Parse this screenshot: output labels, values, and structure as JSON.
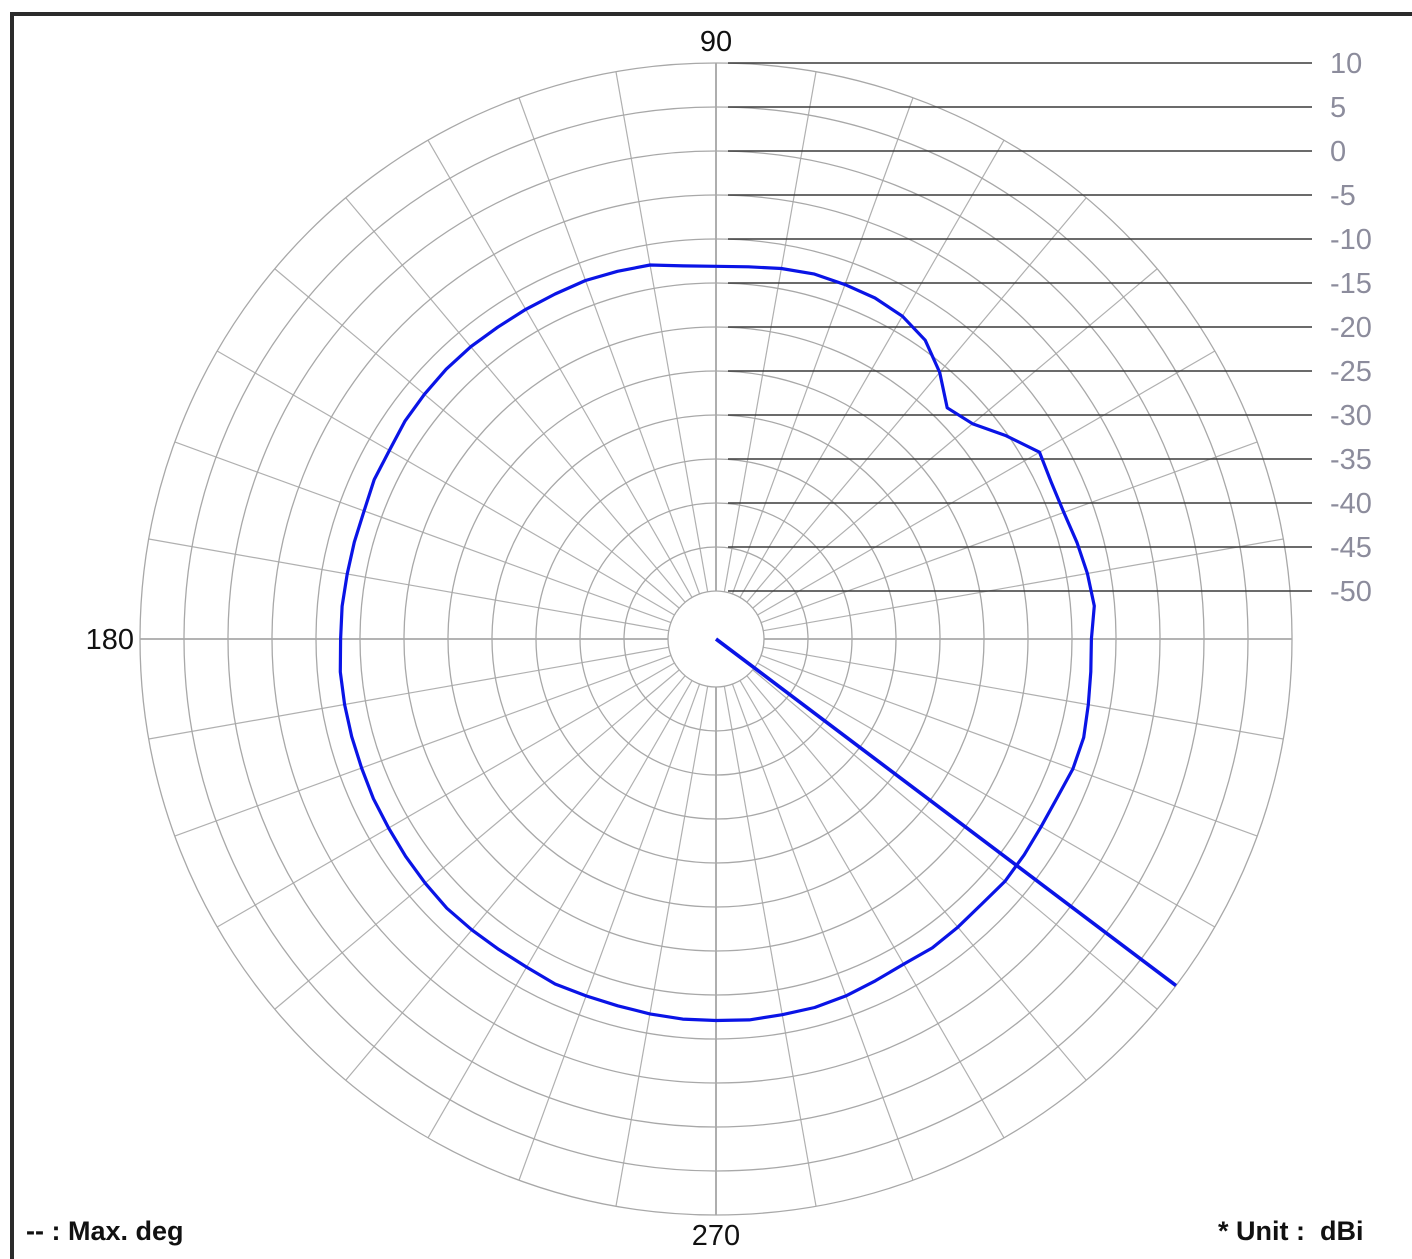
{
  "chart_data": {
    "type": "polar",
    "angle_labels": [
      "90",
      "180",
      "270"
    ],
    "radial_ticks": [
      "10",
      "5",
      "0",
      "-5",
      "-10",
      "-15",
      "-20",
      "-25",
      "-30",
      "-35",
      "-40",
      "-45",
      "-50"
    ],
    "r_range": [
      -50,
      10
    ],
    "r_unit": "dBi",
    "grid": true,
    "angular_grid_step_deg": 10,
    "series": [
      {
        "color": "#0a14e6",
        "points": [
          {
            "angle": 0,
            "value": -12.8
          },
          {
            "angle": 5,
            "value": -12.3
          },
          {
            "angle": 10,
            "value": -12.6
          },
          {
            "angle": 15,
            "value": -13.0
          },
          {
            "angle": 20,
            "value": -13.4
          },
          {
            "angle": 25,
            "value": -13.4
          },
          {
            "angle": 30,
            "value": -13.0
          },
          {
            "angle": 35,
            "value": -15.2
          },
          {
            "angle": 40,
            "value": -17.4
          },
          {
            "angle": 45,
            "value": -18.3
          },
          {
            "angle": 50,
            "value": -15.9
          },
          {
            "angle": 55,
            "value": -14.0
          },
          {
            "angle": 60,
            "value": -13.1
          },
          {
            "angle": 65,
            "value": -12.7
          },
          {
            "angle": 70,
            "value": -12.6
          },
          {
            "angle": 75,
            "value": -12.5
          },
          {
            "angle": 80,
            "value": -12.7
          },
          {
            "angle": 85,
            "value": -13.0
          },
          {
            "angle": 90,
            "value": -13.1
          },
          {
            "angle": 95,
            "value": -12.9
          },
          {
            "angle": 100,
            "value": -12.3
          },
          {
            "angle": 105,
            "value": -12.2
          },
          {
            "angle": 110,
            "value": -12.1
          },
          {
            "angle": 115,
            "value": -12.2
          },
          {
            "angle": 120,
            "value": -12.2
          },
          {
            "angle": 125,
            "value": -12.2
          },
          {
            "angle": 130,
            "value": -12.1
          },
          {
            "angle": 135,
            "value": -12.1
          },
          {
            "angle": 140,
            "value": -12.2
          },
          {
            "angle": 145,
            "value": -12.3
          },
          {
            "angle": 150,
            "value": -12.6
          },
          {
            "angle": 155,
            "value": -12.6
          },
          {
            "angle": 160,
            "value": -12.9
          },
          {
            "angle": 165,
            "value": -12.9
          },
          {
            "angle": 170,
            "value": -12.9
          },
          {
            "angle": 175,
            "value": -12.8
          },
          {
            "angle": 180,
            "value": -12.8
          },
          {
            "angle": 185,
            "value": -12.6
          },
          {
            "angle": 190,
            "value": -12.6
          },
          {
            "angle": 195,
            "value": -12.6
          },
          {
            "angle": 200,
            "value": -12.6
          },
          {
            "angle": 205,
            "value": -12.5
          },
          {
            "angle": 210,
            "value": -12.5
          },
          {
            "angle": 215,
            "value": -12.4
          },
          {
            "angle": 220,
            "value": -12.3
          },
          {
            "angle": 225,
            "value": -12.2
          },
          {
            "angle": 230,
            "value": -12.3
          },
          {
            "angle": 235,
            "value": -12.4
          },
          {
            "angle": 240,
            "value": -12.4
          },
          {
            "angle": 245,
            "value": -12.2
          },
          {
            "angle": 250,
            "value": -12.3
          },
          {
            "angle": 255,
            "value": -12.3
          },
          {
            "angle": 260,
            "value": -12.2
          },
          {
            "angle": 265,
            "value": -12.1
          },
          {
            "angle": 270,
            "value": -12.1
          },
          {
            "angle": 275,
            "value": -12.0
          },
          {
            "angle": 280,
            "value": -12.1
          },
          {
            "angle": 285,
            "value": -12.1
          },
          {
            "angle": 290,
            "value": -12.3
          },
          {
            "angle": 295,
            "value": -12.6
          },
          {
            "angle": 300,
            "value": -12.8
          },
          {
            "angle": 305,
            "value": -12.6
          },
          {
            "angle": 310,
            "value": -12.7
          },
          {
            "angle": 315,
            "value": -12.8
          },
          {
            "angle": 320,
            "value": -12.6
          },
          {
            "angle": 325,
            "value": -12.7
          },
          {
            "angle": 330,
            "value": -12.8
          },
          {
            "angle": 335,
            "value": -12.7
          },
          {
            "angle": 340,
            "value": -12.3
          },
          {
            "angle": 345,
            "value": -12.2
          },
          {
            "angle": 350,
            "value": -12.5
          },
          {
            "angle": 355,
            "value": -12.7
          }
        ]
      }
    ],
    "max_direction": {
      "angle": 323,
      "value": 10
    }
  },
  "footer": {
    "max_deg_note": "-- : Max. deg",
    "unit_note": "* Unit :  dBi"
  }
}
